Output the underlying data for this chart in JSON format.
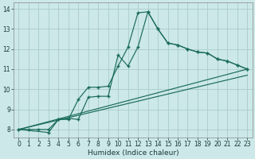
{
  "xlabel": "Humidex (Indice chaleur)",
  "bg_color": "#cce8e8",
  "grid_color": "#aacccc",
  "line_color": "#1a6b5a",
  "xlim": [
    -0.5,
    23.5
  ],
  "ylim": [
    7.6,
    14.3
  ],
  "yticks": [
    8,
    9,
    10,
    11,
    12,
    13,
    14
  ],
  "xticks": [
    0,
    1,
    2,
    3,
    4,
    5,
    6,
    7,
    8,
    9,
    10,
    11,
    12,
    13,
    14,
    15,
    16,
    17,
    18,
    19,
    20,
    21,
    22,
    23
  ],
  "line1_x": [
    0,
    1,
    2,
    3,
    4,
    5,
    6,
    7,
    8,
    9,
    10,
    11,
    12,
    13,
    14,
    15,
    16,
    17,
    18,
    19,
    20,
    21,
    22,
    23
  ],
  "line1_y": [
    8.0,
    8.0,
    8.0,
    8.0,
    8.5,
    8.5,
    9.5,
    10.1,
    10.1,
    10.15,
    11.15,
    12.1,
    13.8,
    13.85,
    13.0,
    12.3,
    12.2,
    12.0,
    11.85,
    11.8,
    11.5,
    11.4,
    11.2,
    11.0
  ],
  "line2_x": [
    0,
    3,
    4,
    5,
    6,
    7,
    8,
    9,
    10,
    11,
    12,
    13,
    14,
    15,
    16,
    17,
    18,
    19,
    20,
    21,
    22,
    23
  ],
  "line2_y": [
    8.0,
    7.85,
    8.5,
    8.55,
    8.5,
    9.6,
    9.65,
    9.65,
    11.7,
    11.15,
    12.1,
    13.85,
    13.0,
    12.3,
    12.2,
    12.0,
    11.85,
    11.8,
    11.5,
    11.4,
    11.2,
    11.0
  ],
  "line3_x": [
    0,
    23
  ],
  "line3_y": [
    8.0,
    11.0
  ],
  "line4_x": [
    0,
    23
  ],
  "line4_y": [
    8.0,
    10.7
  ],
  "tick_fontsize": 5.5,
  "xlabel_fontsize": 6.5
}
